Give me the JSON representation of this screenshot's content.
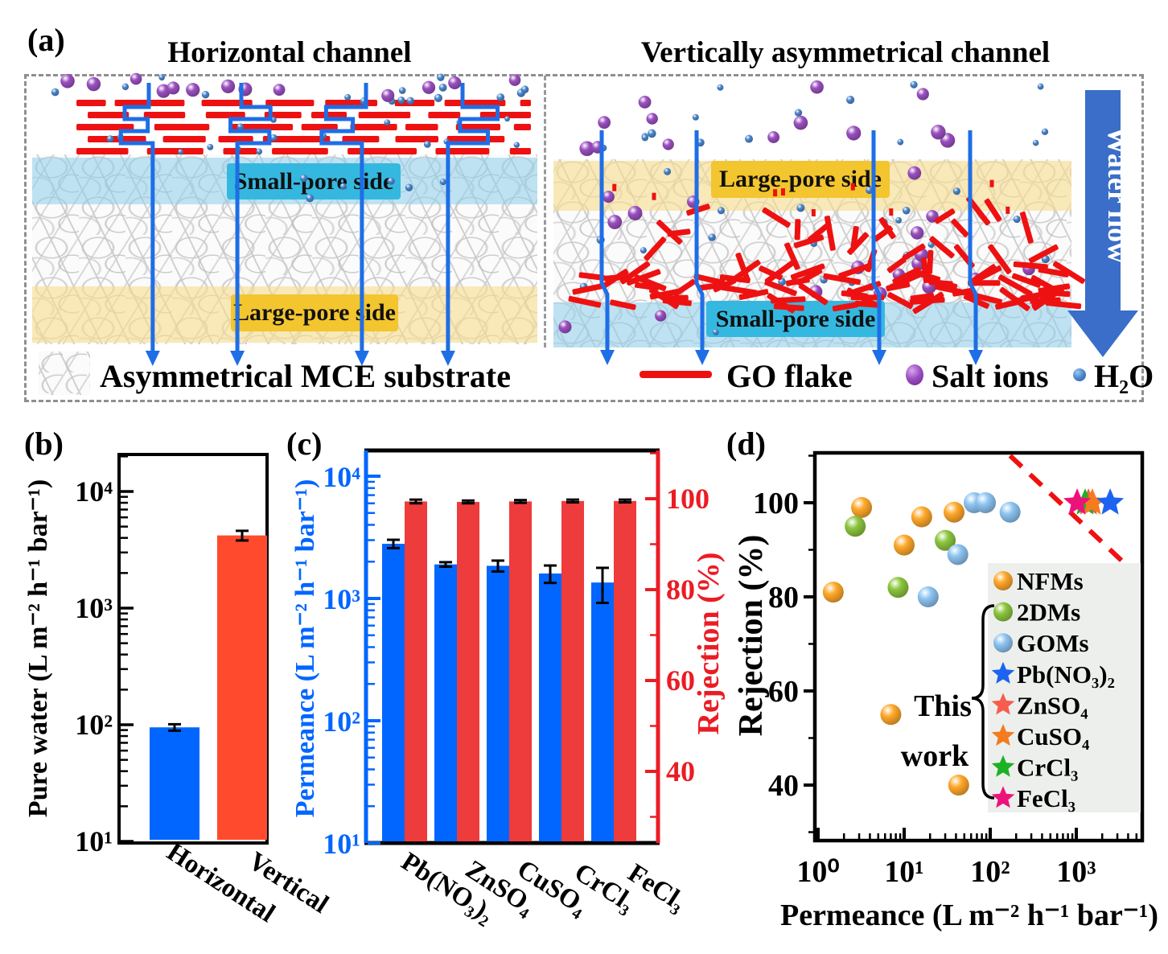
{
  "figure": {
    "panel_labels": {
      "a": "(a)",
      "b": "(b)",
      "c": "(c)",
      "d": "(d)"
    }
  },
  "panel_a": {
    "left_title": "Horizontal channel",
    "right_title": "Vertically asymmetrical channel",
    "left_small_pore": "Small-pore side",
    "left_large_pore": "Large-pore side",
    "right_large_pore": "Large-pore side",
    "right_small_pore": "Small-pore side",
    "water_flow": "Water flow",
    "legend": [
      {
        "icon": "mce-substrate-swatch",
        "label": "Asymmetrical MCE substrate"
      },
      {
        "icon": "go-flake-line",
        "label": "GO flake"
      },
      {
        "icon": "salt-ion-dot",
        "label": "Salt ions"
      },
      {
        "icon": "water-dot",
        "label": "H₂O"
      }
    ],
    "colors": {
      "go_flake": "#EE1111",
      "water_channel": "#1E6EE6",
      "salt_ion": "#8B3CAB",
      "water_dot": "#3878C8",
      "small_pore_box": "#35B8E0",
      "large_pore_box": "#F3C52E",
      "small_pore_band": "rgba(140,205,235,0.55)",
      "large_pore_band": "rgba(248,220,140,0.60)",
      "water_flow_arrow": "#3A6EC8"
    }
  },
  "chart_data": [
    {
      "id": "b",
      "type": "bar",
      "yscale": "log",
      "ylabel": "Pure water (L m⁻² h⁻¹ bar⁻¹)",
      "categories": [
        "Horizontal",
        "Vertical"
      ],
      "values": [
        95,
        4200
      ],
      "errors": [
        6,
        400
      ],
      "bar_colors": [
        "#0066FF",
        "#FF4A2E"
      ],
      "ylim": [
        10,
        21000
      ],
      "ytick_labels": [
        "10¹",
        "10²",
        "10³",
        "10⁴"
      ],
      "ytick_values": [
        10,
        100,
        1000,
        10000
      ]
    },
    {
      "id": "c",
      "type": "bar-dual",
      "categories": [
        "Pb(NO₃)₂",
        "ZnSO₄",
        "CuSO₄",
        "CrCl₃",
        "FeCl₃"
      ],
      "left": {
        "label": "Permeance (L m⁻² h⁻¹ bar⁻¹)",
        "scale": "log",
        "axis_color": "#0066FF",
        "bar_color": "#0066FF",
        "values": [
          2800,
          1900,
          1850,
          1600,
          1350
        ],
        "errors": [
          220,
          80,
          190,
          260,
          430
        ],
        "ylim": [
          10,
          21000
        ],
        "tick_labels": [
          "10¹",
          "10²",
          "10³",
          "10⁴"
        ],
        "tick_values": [
          10,
          100,
          1000,
          10000
        ]
      },
      "right": {
        "label": "Rejection (%)",
        "axis_color": "#EB1C24",
        "bar_color": "#EE3B3B",
        "values": [
          99.4,
          99.3,
          99.4,
          99.5,
          99.5
        ],
        "errors": [
          0.4,
          0.3,
          0.3,
          0.3,
          0.3
        ],
        "ylim": [
          24,
          110
        ],
        "ticks": [
          40,
          60,
          80,
          100
        ]
      }
    },
    {
      "id": "d",
      "type": "scatter",
      "xscale": "log",
      "xlabel": "Permeance (L m⁻² h⁻¹ bar⁻¹)",
      "ylabel": "Rejection (%)",
      "xlim": [
        0.9,
        5900
      ],
      "ylim": [
        28,
        110
      ],
      "xtick_labels": [
        "10⁰",
        "10¹",
        "10²",
        "10³"
      ],
      "xtick_values": [
        1,
        10,
        100,
        1000
      ],
      "yticks": [
        40,
        60,
        80,
        100
      ],
      "series": [
        {
          "name": "NFMs",
          "marker": "circle",
          "color": "#FFA82A",
          "points": [
            [
              1.5,
              81
            ],
            [
              3.2,
              99
            ],
            [
              10,
              91
            ],
            [
              16,
              97
            ],
            [
              38,
              98
            ],
            [
              7,
              55
            ],
            [
              43,
              40
            ]
          ]
        },
        {
          "name": "2DMs",
          "marker": "circle",
          "color": "#8CC63E",
          "points": [
            [
              2.7,
              95
            ],
            [
              8.5,
              82
            ],
            [
              30,
              92
            ]
          ]
        },
        {
          "name": "GOMs",
          "marker": "circle",
          "color": "#8EC4F2",
          "points": [
            [
              19,
              80
            ],
            [
              42,
              89
            ],
            [
              65,
              100
            ],
            [
              88,
              100
            ],
            [
              170,
              98
            ]
          ]
        },
        {
          "name": "ZnSO₄",
          "marker": "star",
          "color": "#F75C4E",
          "points": [
            [
              1385,
              100
            ]
          ]
        },
        {
          "name": "CrCl₃",
          "marker": "star",
          "color": "#1DB224",
          "points": [
            [
              1266,
              100
            ]
          ]
        },
        {
          "name": "CuSO₄",
          "marker": "star",
          "color": "#F47B20",
          "points": [
            [
              1537,
              100
            ]
          ]
        },
        {
          "name": "FeCl₃",
          "marker": "star",
          "color": "#ED127B",
          "points": [
            [
              1023,
              100
            ]
          ]
        },
        {
          "name": "Pb(NO₃)₂",
          "marker": "star",
          "color": "#1C64F0",
          "points": [
            [
              2475,
              100
            ]
          ]
        }
      ],
      "legend": [
        "NFMs",
        "2DMs",
        "GOMs",
        "Pb(NO₃)₂",
        "ZnSO₄",
        "CuSO₄",
        "CrCl₃",
        "FeCl₃"
      ],
      "annotation": "This work",
      "tradeoff_line": {
        "x1": 170,
        "y1": 110,
        "x2": 3700,
        "y2": 87,
        "color": "#F01010",
        "style": "dashed"
      }
    }
  ]
}
